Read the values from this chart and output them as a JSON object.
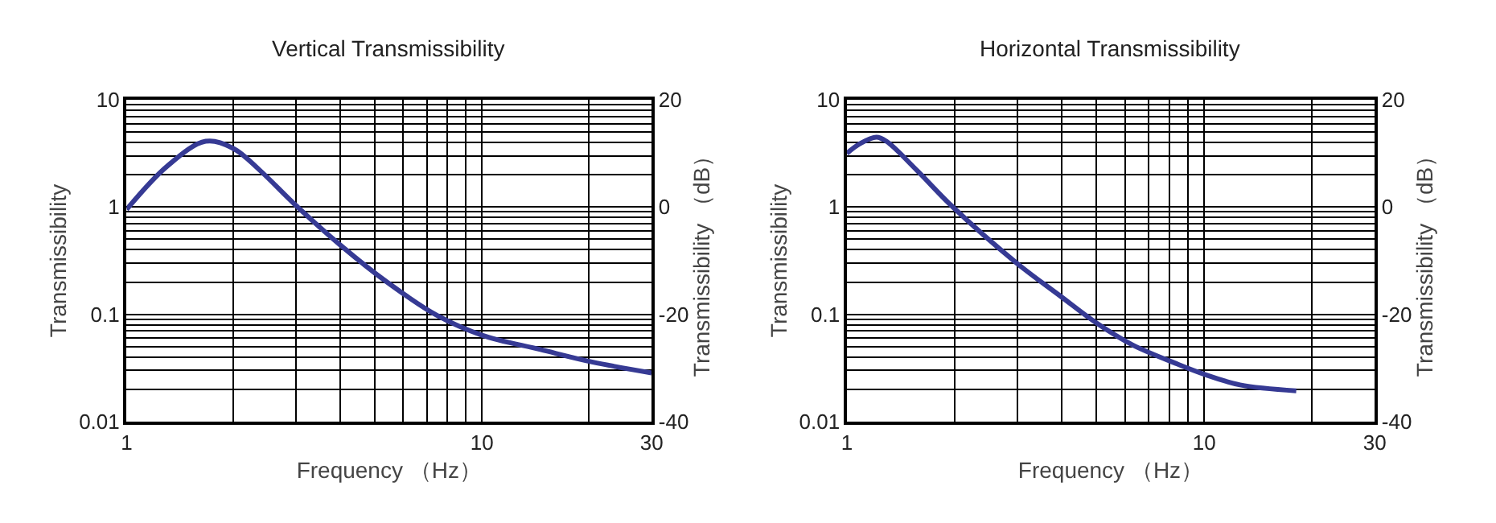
{
  "chart_data": [
    {
      "type": "line",
      "title": "Vertical Transmissibility",
      "xlabel": "Frequency （Hz）",
      "ylabel": "Transmissibility",
      "y2label": "Transmissibility （dB）",
      "log": "xy",
      "grid": true,
      "xlim": [
        1,
        30
      ],
      "ylim": [
        0.01,
        10
      ],
      "y2lim": [
        -40,
        20
      ],
      "xticks": [
        1,
        {
          "value": 2,
          "label": null
        },
        {
          "value": 3,
          "label": null
        },
        {
          "value": 4,
          "label": null
        },
        {
          "value": 5,
          "label": null
        },
        {
          "value": 6,
          "label": null
        },
        {
          "value": 7,
          "label": null
        },
        {
          "value": 8,
          "label": null
        },
        {
          "value": 9,
          "label": null
        },
        10,
        {
          "value": 20,
          "label": null
        },
        30
      ],
      "yticks": [
        0.01,
        {
          "value": 0.02,
          "label": null
        },
        {
          "value": 0.03,
          "label": null
        },
        {
          "value": 0.04,
          "label": null
        },
        {
          "value": 0.05,
          "label": null
        },
        {
          "value": 0.06,
          "label": null
        },
        {
          "value": 0.07,
          "label": null
        },
        {
          "value": 0.08,
          "label": null
        },
        {
          "value": 0.09,
          "label": null
        },
        0.1,
        {
          "value": 0.2,
          "label": null
        },
        {
          "value": 0.3,
          "label": null
        },
        {
          "value": 0.4,
          "label": null
        },
        {
          "value": 0.5,
          "label": null
        },
        {
          "value": 0.6,
          "label": null
        },
        {
          "value": 0.7,
          "label": null
        },
        {
          "value": 0.8,
          "label": null
        },
        {
          "value": 0.9,
          "label": null
        },
        1,
        {
          "value": 2,
          "label": null
        },
        {
          "value": 3,
          "label": null
        },
        {
          "value": 4,
          "label": null
        },
        {
          "value": 5,
          "label": null
        },
        {
          "value": 6,
          "label": null
        },
        {
          "value": 7,
          "label": null
        },
        {
          "value": 8,
          "label": null
        },
        {
          "value": 9,
          "label": null
        },
        10
      ],
      "y2ticks": [
        -40,
        -20,
        0,
        20
      ],
      "series": [
        {
          "color": "#363a94",
          "x": [
            1,
            1.3,
            1.67,
            2.0,
            2.37,
            2.98,
            4.0,
            5.4,
            7.5,
            10,
            14.6,
            20.4,
            30
          ],
          "values": [
            0.95,
            2.4,
            4.1,
            3.5,
            2.2,
            1.05,
            0.44,
            0.2,
            0.097,
            0.064,
            0.047,
            0.036,
            0.0285
          ]
        }
      ]
    },
    {
      "type": "line",
      "title": "Horizontal Transmissibility",
      "xlabel": "Frequency （Hz）",
      "ylabel": "Transmissibility",
      "y2label": "Transmissibility （dB）",
      "log": "xy",
      "grid": true,
      "xlim": [
        1,
        30
      ],
      "ylim": [
        0.01,
        10
      ],
      "y2lim": [
        -40,
        20
      ],
      "xticks": [
        1,
        {
          "value": 2,
          "label": null
        },
        {
          "value": 3,
          "label": null
        },
        {
          "value": 4,
          "label": null
        },
        {
          "value": 5,
          "label": null
        },
        {
          "value": 6,
          "label": null
        },
        {
          "value": 7,
          "label": null
        },
        {
          "value": 8,
          "label": null
        },
        {
          "value": 9,
          "label": null
        },
        10,
        {
          "value": 20,
          "label": null
        },
        30
      ],
      "yticks": [
        0.01,
        {
          "value": 0.02,
          "label": null
        },
        {
          "value": 0.03,
          "label": null
        },
        {
          "value": 0.04,
          "label": null
        },
        {
          "value": 0.05,
          "label": null
        },
        {
          "value": 0.06,
          "label": null
        },
        {
          "value": 0.07,
          "label": null
        },
        {
          "value": 0.08,
          "label": null
        },
        {
          "value": 0.09,
          "label": null
        },
        0.1,
        {
          "value": 0.2,
          "label": null
        },
        {
          "value": 0.3,
          "label": null
        },
        {
          "value": 0.4,
          "label": null
        },
        {
          "value": 0.5,
          "label": null
        },
        {
          "value": 0.6,
          "label": null
        },
        {
          "value": 0.7,
          "label": null
        },
        {
          "value": 0.8,
          "label": null
        },
        {
          "value": 0.9,
          "label": null
        },
        1,
        {
          "value": 2,
          "label": null
        },
        {
          "value": 3,
          "label": null
        },
        {
          "value": 4,
          "label": null
        },
        {
          "value": 5,
          "label": null
        },
        {
          "value": 6,
          "label": null
        },
        {
          "value": 7,
          "label": null
        },
        {
          "value": 8,
          "label": null
        },
        {
          "value": 9,
          "label": null
        },
        10
      ],
      "y2ticks": [
        -40,
        -20,
        0,
        20
      ],
      "series": [
        {
          "color": "#363a94",
          "x": [
            1,
            1.09,
            1.21,
            1.29,
            1.57,
            1.98,
            2.99,
            3.96,
            5.0,
            6.3,
            8.5,
            10,
            12.6,
            18.1
          ],
          "values": [
            3.16,
            3.9,
            4.47,
            4.1,
            2.2,
            1.0,
            0.3,
            0.148,
            0.083,
            0.052,
            0.034,
            0.0277,
            0.022,
            0.0194
          ]
        }
      ]
    }
  ]
}
